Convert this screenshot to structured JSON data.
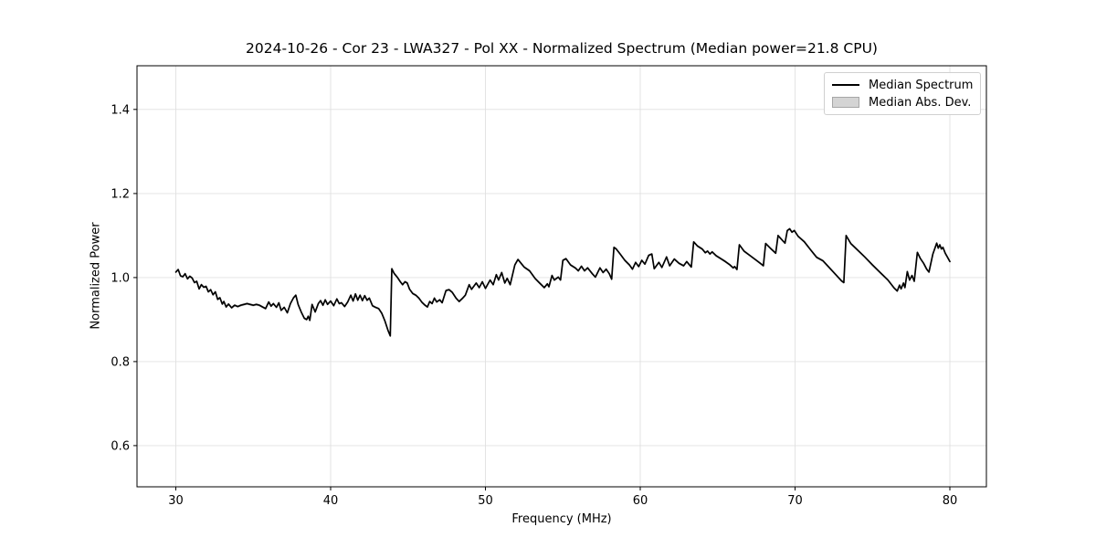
{
  "chart_data": {
    "type": "line",
    "title": "2024-10-26 - Cor 23 - LWA327 - Pol XX - Normalized Spectrum (Median power=21.8 CPU)",
    "xlabel": "Frequency (MHz)",
    "ylabel": "Normalized Power",
    "xlim": [
      27.49,
      82.36
    ],
    "ylim": [
      0.502,
      1.504
    ],
    "xticks": [
      30,
      40,
      50,
      60,
      70,
      80
    ],
    "xtick_labels": [
      "30",
      "40",
      "50",
      "60",
      "70",
      "80"
    ],
    "yticks": [
      0.6,
      0.8,
      1.0,
      1.2,
      1.4
    ],
    "ytick_labels": [
      "0.6",
      "0.8",
      "1.0",
      "1.2",
      "1.4"
    ],
    "grid": true,
    "legend": {
      "position": "upper right",
      "entries": [
        {
          "label": "Median Spectrum",
          "type": "line",
          "color": "#000000"
        },
        {
          "label": "Median Abs. Dev.",
          "type": "patch",
          "color": "#d4d4d4",
          "edge_color": "#a6a6a6"
        }
      ]
    },
    "band": {
      "name": "Median Abs. Dev.",
      "color": "#cccccc",
      "half_width": 0.003
    },
    "series": [
      {
        "name": "Median Spectrum",
        "color": "#000000",
        "points": [
          [
            30.0,
            1.013
          ],
          [
            30.15,
            1.019
          ],
          [
            30.3,
            1.004
          ],
          [
            30.45,
            1.002
          ],
          [
            30.6,
            1.009
          ],
          [
            30.75,
            0.997
          ],
          [
            30.9,
            1.003
          ],
          [
            31.05,
            0.999
          ],
          [
            31.2,
            0.988
          ],
          [
            31.35,
            0.991
          ],
          [
            31.5,
            0.973
          ],
          [
            31.65,
            0.983
          ],
          [
            31.8,
            0.977
          ],
          [
            31.95,
            0.979
          ],
          [
            32.1,
            0.966
          ],
          [
            32.25,
            0.971
          ],
          [
            32.4,
            0.959
          ],
          [
            32.55,
            0.966
          ],
          [
            32.7,
            0.948
          ],
          [
            32.85,
            0.952
          ],
          [
            33.0,
            0.937
          ],
          [
            33.1,
            0.943
          ],
          [
            33.25,
            0.93
          ],
          [
            33.4,
            0.937
          ],
          [
            33.6,
            0.928
          ],
          [
            33.8,
            0.934
          ],
          [
            34.0,
            0.931
          ],
          [
            34.2,
            0.934
          ],
          [
            34.4,
            0.936
          ],
          [
            34.6,
            0.938
          ],
          [
            34.8,
            0.936
          ],
          [
            35.0,
            0.934
          ],
          [
            35.2,
            0.936
          ],
          [
            35.4,
            0.934
          ],
          [
            35.6,
            0.93
          ],
          [
            35.8,
            0.926
          ],
          [
            36.0,
            0.942
          ],
          [
            36.15,
            0.932
          ],
          [
            36.3,
            0.938
          ],
          [
            36.5,
            0.929
          ],
          [
            36.65,
            0.94
          ],
          [
            36.8,
            0.922
          ],
          [
            37.0,
            0.929
          ],
          [
            37.2,
            0.916
          ],
          [
            37.4,
            0.938
          ],
          [
            37.6,
            0.952
          ],
          [
            37.75,
            0.958
          ],
          [
            37.9,
            0.936
          ],
          [
            38.1,
            0.918
          ],
          [
            38.3,
            0.903
          ],
          [
            38.45,
            0.9
          ],
          [
            38.55,
            0.908
          ],
          [
            38.65,
            0.898
          ],
          [
            38.8,
            0.936
          ],
          [
            39.0,
            0.918
          ],
          [
            39.2,
            0.938
          ],
          [
            39.35,
            0.945
          ],
          [
            39.5,
            0.934
          ],
          [
            39.65,
            0.947
          ],
          [
            39.8,
            0.936
          ],
          [
            40.0,
            0.944
          ],
          [
            40.2,
            0.933
          ],
          [
            40.4,
            0.949
          ],
          [
            40.55,
            0.938
          ],
          [
            40.7,
            0.94
          ],
          [
            40.9,
            0.931
          ],
          [
            41.1,
            0.942
          ],
          [
            41.3,
            0.958
          ],
          [
            41.45,
            0.944
          ],
          [
            41.6,
            0.961
          ],
          [
            41.75,
            0.946
          ],
          [
            41.9,
            0.958
          ],
          [
            42.05,
            0.945
          ],
          [
            42.2,
            0.957
          ],
          [
            42.35,
            0.946
          ],
          [
            42.5,
            0.951
          ],
          [
            42.7,
            0.933
          ],
          [
            42.9,
            0.929
          ],
          [
            43.1,
            0.926
          ],
          [
            43.3,
            0.915
          ],
          [
            43.5,
            0.897
          ],
          [
            43.7,
            0.875
          ],
          [
            43.85,
            0.861
          ],
          [
            43.95,
            1.021
          ],
          [
            44.1,
            1.01
          ],
          [
            44.3,
            1.001
          ],
          [
            44.5,
            0.99
          ],
          [
            44.65,
            0.983
          ],
          [
            44.8,
            0.99
          ],
          [
            44.95,
            0.987
          ],
          [
            45.1,
            0.972
          ],
          [
            45.3,
            0.962
          ],
          [
            45.5,
            0.958
          ],
          [
            45.7,
            0.951
          ],
          [
            45.9,
            0.941
          ],
          [
            46.1,
            0.934
          ],
          [
            46.25,
            0.93
          ],
          [
            46.4,
            0.943
          ],
          [
            46.55,
            0.938
          ],
          [
            46.7,
            0.951
          ],
          [
            46.85,
            0.942
          ],
          [
            47.05,
            0.947
          ],
          [
            47.2,
            0.94
          ],
          [
            47.45,
            0.969
          ],
          [
            47.65,
            0.971
          ],
          [
            47.85,
            0.965
          ],
          [
            48.1,
            0.951
          ],
          [
            48.3,
            0.943
          ],
          [
            48.5,
            0.95
          ],
          [
            48.7,
            0.958
          ],
          [
            48.95,
            0.983
          ],
          [
            49.1,
            0.972
          ],
          [
            49.4,
            0.987
          ],
          [
            49.6,
            0.976
          ],
          [
            49.8,
            0.99
          ],
          [
            50.0,
            0.974
          ],
          [
            50.3,
            0.994
          ],
          [
            50.5,
            0.983
          ],
          [
            50.7,
            1.007
          ],
          [
            50.85,
            0.994
          ],
          [
            51.05,
            1.012
          ],
          [
            51.25,
            0.987
          ],
          [
            51.4,
            0.998
          ],
          [
            51.6,
            0.983
          ],
          [
            51.9,
            1.03
          ],
          [
            52.1,
            1.043
          ],
          [
            52.5,
            1.025
          ],
          [
            52.85,
            1.016
          ],
          [
            53.2,
            0.998
          ],
          [
            53.5,
            0.987
          ],
          [
            53.8,
            0.976
          ],
          [
            54.0,
            0.985
          ],
          [
            54.1,
            0.978
          ],
          [
            54.3,
            1.005
          ],
          [
            54.45,
            0.994
          ],
          [
            54.7,
            1.001
          ],
          [
            54.85,
            0.994
          ],
          [
            55.0,
            1.041
          ],
          [
            55.2,
            1.045
          ],
          [
            55.5,
            1.03
          ],
          [
            55.8,
            1.023
          ],
          [
            56.0,
            1.016
          ],
          [
            56.2,
            1.027
          ],
          [
            56.4,
            1.016
          ],
          [
            56.6,
            1.023
          ],
          [
            56.9,
            1.009
          ],
          [
            57.1,
            1.001
          ],
          [
            57.4,
            1.023
          ],
          [
            57.6,
            1.012
          ],
          [
            57.8,
            1.02
          ],
          [
            58.0,
            1.009
          ],
          [
            58.15,
            0.996
          ],
          [
            58.3,
            1.072
          ],
          [
            58.45,
            1.068
          ],
          [
            58.7,
            1.056
          ],
          [
            59.0,
            1.041
          ],
          [
            59.3,
            1.03
          ],
          [
            59.5,
            1.02
          ],
          [
            59.7,
            1.036
          ],
          [
            59.9,
            1.026
          ],
          [
            60.1,
            1.041
          ],
          [
            60.3,
            1.032
          ],
          [
            60.55,
            1.053
          ],
          [
            60.75,
            1.056
          ],
          [
            60.9,
            1.021
          ],
          [
            61.2,
            1.036
          ],
          [
            61.4,
            1.024
          ],
          [
            61.7,
            1.049
          ],
          [
            61.9,
            1.028
          ],
          [
            62.2,
            1.044
          ],
          [
            62.5,
            1.034
          ],
          [
            62.8,
            1.028
          ],
          [
            63.0,
            1.038
          ],
          [
            63.3,
            1.025
          ],
          [
            63.45,
            1.085
          ],
          [
            63.7,
            1.075
          ],
          [
            64.0,
            1.068
          ],
          [
            64.2,
            1.059
          ],
          [
            64.35,
            1.063
          ],
          [
            64.5,
            1.056
          ],
          [
            64.65,
            1.061
          ],
          [
            64.9,
            1.052
          ],
          [
            65.2,
            1.045
          ],
          [
            65.5,
            1.038
          ],
          [
            65.8,
            1.03
          ],
          [
            66.0,
            1.023
          ],
          [
            66.1,
            1.026
          ],
          [
            66.25,
            1.019
          ],
          [
            66.4,
            1.078
          ],
          [
            66.7,
            1.063
          ],
          [
            67.1,
            1.052
          ],
          [
            67.5,
            1.041
          ],
          [
            67.85,
            1.031
          ],
          [
            67.95,
            1.028
          ],
          [
            68.1,
            1.081
          ],
          [
            68.4,
            1.07
          ],
          [
            68.6,
            1.063
          ],
          [
            68.75,
            1.058
          ],
          [
            68.9,
            1.1
          ],
          [
            69.2,
            1.088
          ],
          [
            69.35,
            1.082
          ],
          [
            69.5,
            1.112
          ],
          [
            69.65,
            1.116
          ],
          [
            69.8,
            1.108
          ],
          [
            69.95,
            1.112
          ],
          [
            70.2,
            1.098
          ],
          [
            70.6,
            1.085
          ],
          [
            71.0,
            1.066
          ],
          [
            71.4,
            1.048
          ],
          [
            71.8,
            1.04
          ],
          [
            72.2,
            1.024
          ],
          [
            72.6,
            1.008
          ],
          [
            73.0,
            0.992
          ],
          [
            73.15,
            0.988
          ],
          [
            73.3,
            1.1
          ],
          [
            73.6,
            1.081
          ],
          [
            74.0,
            1.067
          ],
          [
            74.5,
            1.049
          ],
          [
            75.0,
            1.03
          ],
          [
            75.5,
            1.012
          ],
          [
            76.0,
            0.994
          ],
          [
            76.4,
            0.975
          ],
          [
            76.6,
            0.968
          ],
          [
            76.75,
            0.982
          ],
          [
            76.85,
            0.973
          ],
          [
            77.0,
            0.987
          ],
          [
            77.1,
            0.976
          ],
          [
            77.25,
            1.014
          ],
          [
            77.4,
            0.994
          ],
          [
            77.55,
            1.005
          ],
          [
            77.7,
            0.991
          ],
          [
            77.9,
            1.06
          ],
          [
            78.1,
            1.045
          ],
          [
            78.3,
            1.034
          ],
          [
            78.5,
            1.02
          ],
          [
            78.65,
            1.013
          ],
          [
            78.9,
            1.056
          ],
          [
            79.15,
            1.082
          ],
          [
            79.25,
            1.07
          ],
          [
            79.35,
            1.078
          ],
          [
            79.45,
            1.068
          ],
          [
            79.55,
            1.072
          ],
          [
            79.7,
            1.058
          ],
          [
            79.85,
            1.048
          ],
          [
            80.0,
            1.038
          ]
        ]
      }
    ]
  },
  "style_colors": {
    "background": "#ffffff",
    "text": "#000000",
    "grid": "#e0e0e0",
    "spine": "#000000",
    "legend_border": "#d0d0d0"
  }
}
